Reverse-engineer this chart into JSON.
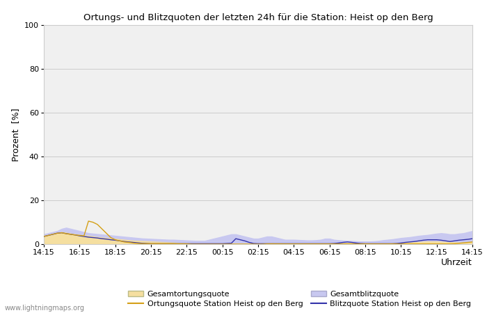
{
  "title": "Ortungs- und Blitzquoten der letzten 24h für die Station: Heist op den Berg",
  "ylabel": "Prozent  [%]",
  "xlabel": "Uhrzeit",
  "xlabels": [
    "14:15",
    "16:15",
    "18:15",
    "20:15",
    "22:15",
    "00:15",
    "02:15",
    "04:15",
    "06:15",
    "08:15",
    "10:15",
    "12:15",
    "14:15"
  ],
  "yticks": [
    0,
    20,
    40,
    60,
    80,
    100
  ],
  "ylim": [
    0,
    100
  ],
  "watermark": "www.lightningmaps.org",
  "legend": [
    {
      "label": "Gesamtortungsquote",
      "color": "#f5dfa0",
      "type": "fill"
    },
    {
      "label": "Ortungsquote Station Heist op den Berg",
      "color": "#d4a017",
      "type": "line"
    },
    {
      "label": "Gesamtblitzquote",
      "color": "#c8c8f0",
      "type": "fill"
    },
    {
      "label": "Blitzquote Station Heist op den Berg",
      "color": "#3333aa",
      "type": "line"
    }
  ],
  "n_points": 97,
  "gesamtortungsquote": [
    3.5,
    3.8,
    4.0,
    5.0,
    5.5,
    5.2,
    4.8,
    4.5,
    4.2,
    4.0,
    3.8,
    3.5,
    3.2,
    3.0,
    2.8,
    2.6,
    2.4,
    2.2,
    2.0,
    1.8,
    1.6,
    1.5,
    1.4,
    1.3,
    1.2,
    1.1,
    1.0,
    0.9,
    0.8,
    0.7,
    0.6,
    0.5,
    0.4,
    0.3,
    0.2,
    0.2,
    0.2,
    0.2,
    0.2,
    0.2,
    0.2,
    0.2,
    0.2,
    0.2,
    0.2,
    0.2,
    0.2,
    0.2,
    0.2,
    0.3,
    0.4,
    0.5,
    0.4,
    0.4,
    0.3,
    0.3,
    0.3,
    0.3,
    0.3,
    0.3,
    0.3,
    0.3,
    0.3,
    0.3,
    0.3,
    0.3,
    0.4,
    0.4,
    0.5,
    0.5,
    0.4,
    0.4,
    0.4,
    0.3,
    0.3,
    0.3,
    0.3,
    0.3,
    0.4,
    0.5,
    0.6,
    0.7,
    0.8,
    0.9,
    1.0,
    1.1,
    1.2,
    1.2,
    1.2,
    1.1,
    1.0,
    0.9,
    0.8,
    0.7,
    0.7,
    0.8,
    1.0
  ],
  "ortungsquote_station": [
    3.5,
    4.0,
    4.5,
    5.0,
    5.2,
    4.8,
    4.5,
    4.2,
    4.0,
    3.8,
    10.5,
    10.0,
    9.0,
    7.0,
    5.0,
    3.0,
    2.0,
    1.5,
    1.0,
    0.8,
    0.5,
    0.3,
    0.2,
    0.2,
    0.2,
    0.2,
    0.2,
    0.2,
    0.2,
    0.2,
    0.1,
    0.1,
    0.1,
    0.0,
    0.0,
    0.0,
    0.0,
    0.0,
    0.0,
    0.0,
    0.0,
    0.0,
    0.0,
    0.0,
    0.0,
    0.0,
    0.0,
    0.0,
    0.0,
    0.0,
    0.1,
    0.1,
    0.1,
    0.1,
    0.1,
    0.1,
    0.1,
    0.1,
    0.1,
    0.1,
    0.1,
    0.1,
    0.1,
    0.1,
    0.1,
    0.1,
    0.1,
    0.1,
    0.1,
    0.1,
    0.1,
    0.1,
    0.1,
    0.1,
    0.1,
    0.1,
    0.1,
    0.1,
    0.1,
    0.1,
    0.1,
    0.1,
    0.1,
    0.1,
    0.1,
    0.1,
    0.1,
    0.1,
    0.1,
    0.1,
    0.1,
    0.1,
    0.2,
    0.4,
    0.6,
    0.8,
    1.0
  ],
  "gesamtblitzquote": [
    4.5,
    5.0,
    5.5,
    6.0,
    7.0,
    7.5,
    7.0,
    6.5,
    6.0,
    5.5,
    5.0,
    4.8,
    4.6,
    4.4,
    4.2,
    4.0,
    3.8,
    3.6,
    3.4,
    3.2,
    3.0,
    2.8,
    2.6,
    2.5,
    2.4,
    2.3,
    2.2,
    2.1,
    2.0,
    2.0,
    1.9,
    1.8,
    1.7,
    1.6,
    1.5,
    1.5,
    1.5,
    2.0,
    2.5,
    3.0,
    3.5,
    4.0,
    4.5,
    4.5,
    4.0,
    3.5,
    3.0,
    2.5,
    2.5,
    3.0,
    3.5,
    3.5,
    3.0,
    2.5,
    2.0,
    2.0,
    2.0,
    1.9,
    1.8,
    1.7,
    1.7,
    1.8,
    2.0,
    2.5,
    2.5,
    2.0,
    1.8,
    1.6,
    1.5,
    1.4,
    1.3,
    1.2,
    1.2,
    1.2,
    1.3,
    1.5,
    1.8,
    2.0,
    2.2,
    2.5,
    2.8,
    3.0,
    3.2,
    3.5,
    3.8,
    4.0,
    4.2,
    4.5,
    4.8,
    5.0,
    4.8,
    4.5,
    4.5,
    4.8,
    5.0,
    5.5,
    6.0
  ],
  "blitzquote_station": [
    3.5,
    4.0,
    4.5,
    5.0,
    5.2,
    4.8,
    4.5,
    4.2,
    3.8,
    3.5,
    3.2,
    3.0,
    2.8,
    2.5,
    2.3,
    2.0,
    1.8,
    1.5,
    1.2,
    1.0,
    0.8,
    0.6,
    0.4,
    0.3,
    0.2,
    0.2,
    0.2,
    0.2,
    0.2,
    0.2,
    0.2,
    0.2,
    0.2,
    0.2,
    0.2,
    0.2,
    0.2,
    0.2,
    0.2,
    0.2,
    0.2,
    0.3,
    0.4,
    2.5,
    2.0,
    1.5,
    0.8,
    0.3,
    0.2,
    0.2,
    0.2,
    0.2,
    0.2,
    0.2,
    0.2,
    0.2,
    0.2,
    0.2,
    0.2,
    0.2,
    0.2,
    0.2,
    0.2,
    0.2,
    0.2,
    0.3,
    0.5,
    0.8,
    1.0,
    0.8,
    0.5,
    0.3,
    0.2,
    0.2,
    0.2,
    0.2,
    0.2,
    0.2,
    0.2,
    0.3,
    0.5,
    0.8,
    1.0,
    1.2,
    1.5,
    1.8,
    2.0,
    2.0,
    2.0,
    1.8,
    1.5,
    1.2,
    1.5,
    1.8,
    2.0,
    2.2,
    2.5
  ],
  "bg_color": "#f0f0f0"
}
